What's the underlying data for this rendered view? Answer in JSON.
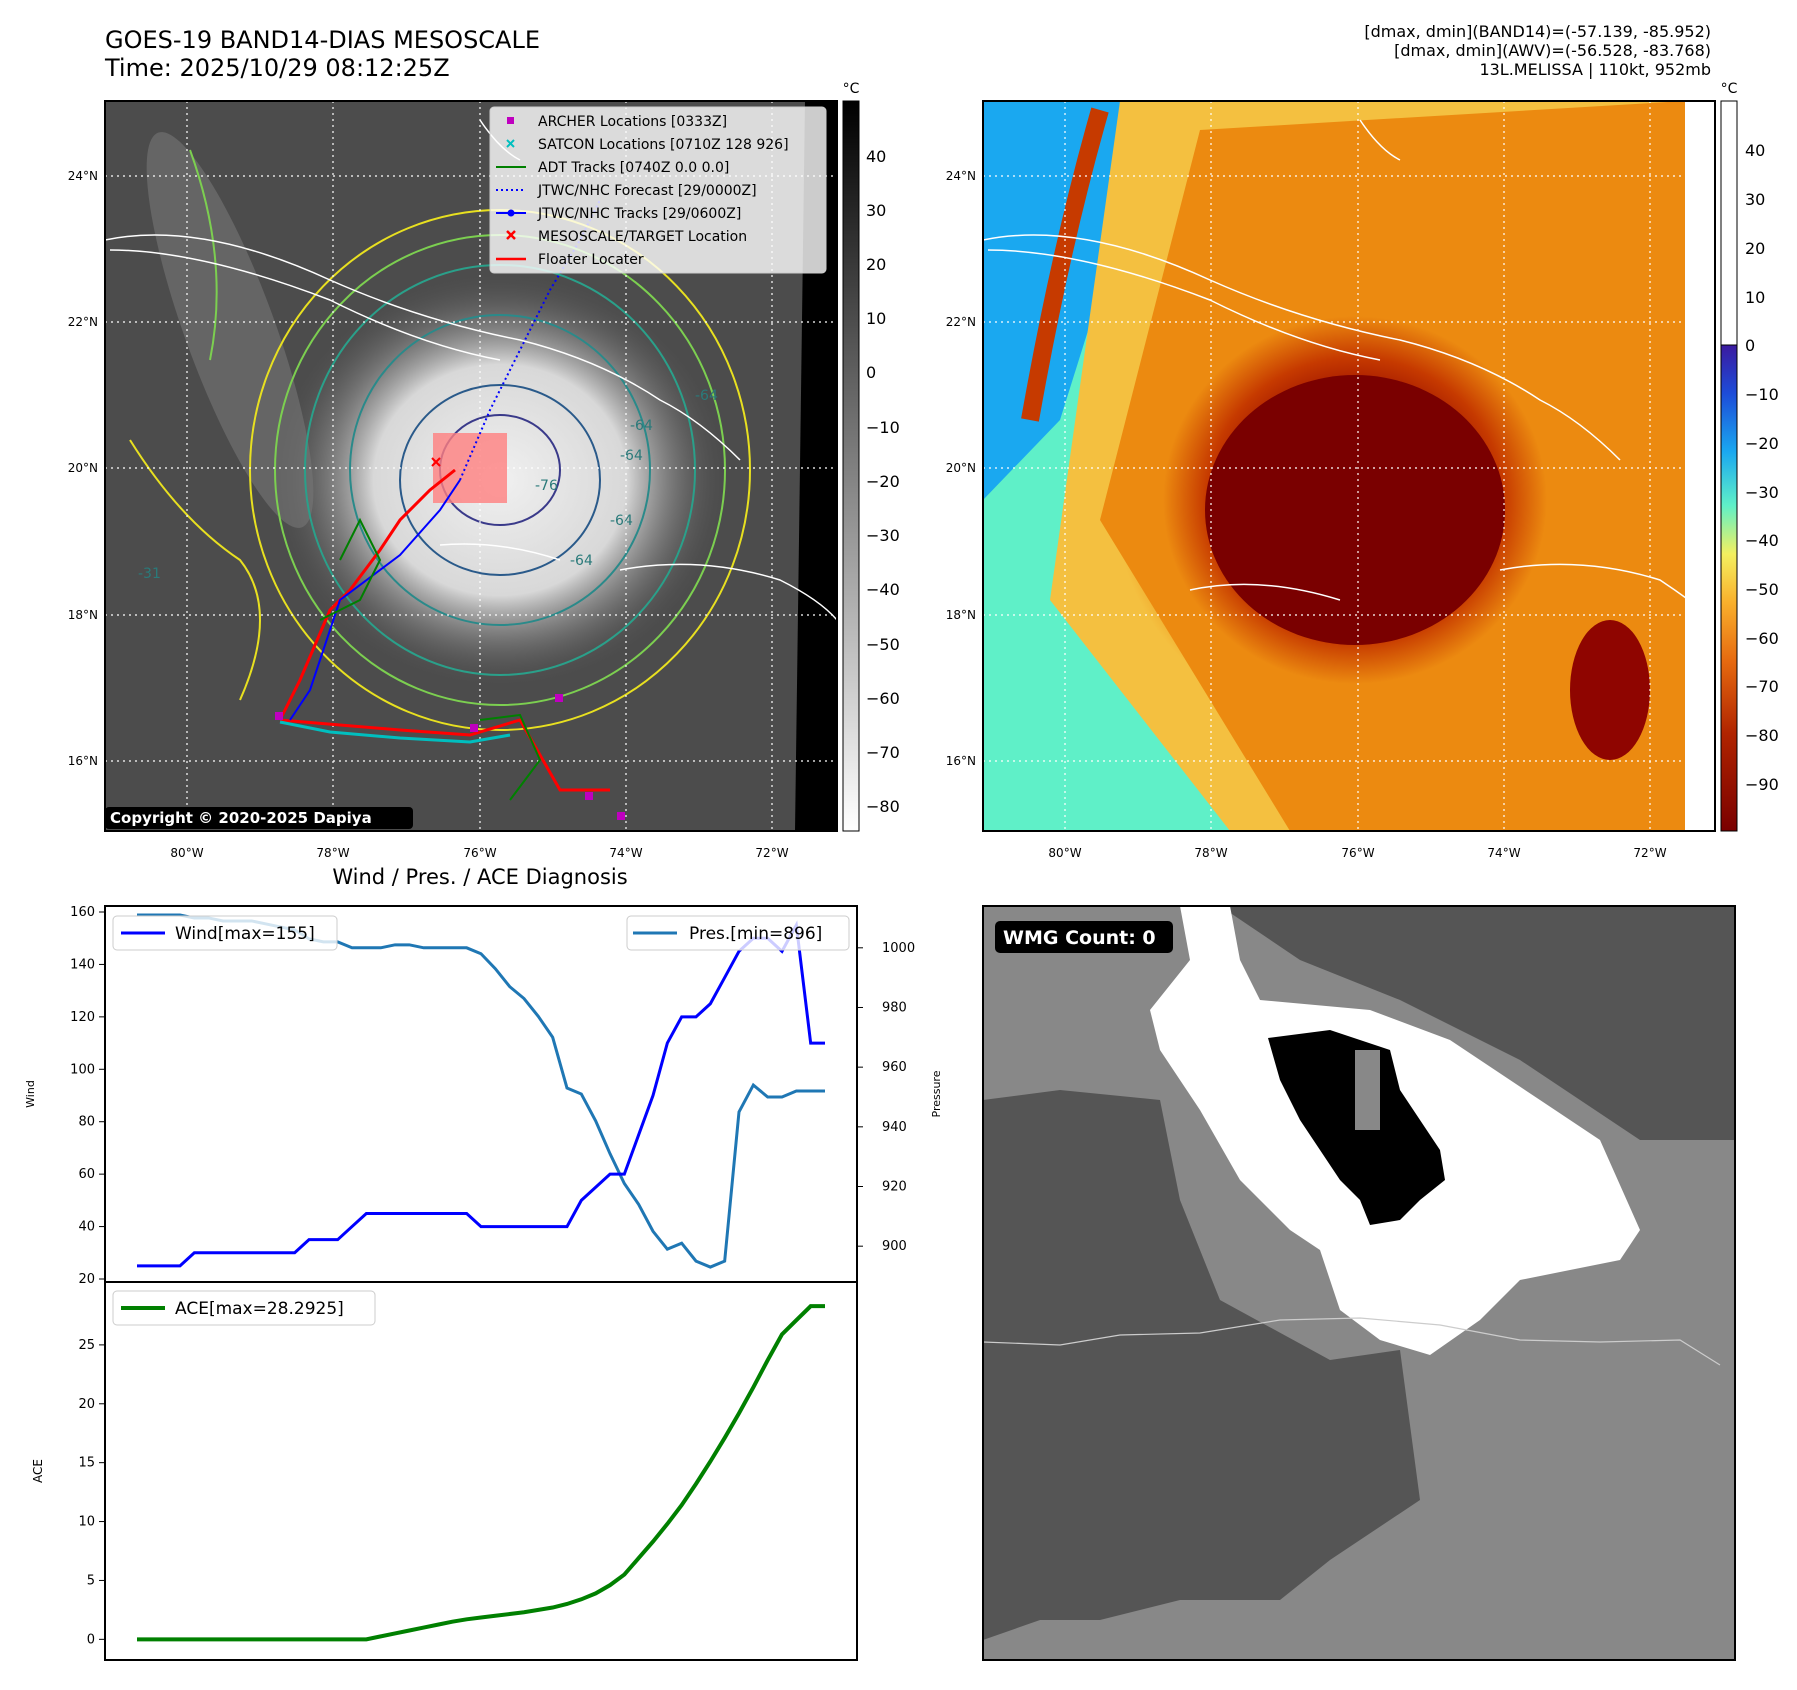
{
  "header": {
    "title_line1": "GOES-19 BAND14-DIAS MESOSCALE",
    "title_line2": "Time: 2025/10/29 08:12:25Z",
    "stats_line1": "[dmax, dmin](BAND14)=(-57.139, -85.952)",
    "stats_line2": "[dmax, dmin](AWV)=(-56.528, -83.768)",
    "stats_line3": "13L.MELISSA | 110kt, 952mb"
  },
  "ir_map": {
    "lon_ticks": [
      "80°W",
      "78°W",
      "76°W",
      "74°W",
      "72°W"
    ],
    "lat_ticks": [
      "24°N",
      "22°N",
      "20°N",
      "18°N",
      "16°N"
    ],
    "colorbar_unit": "°C",
    "colorbar_ticks": [
      "40",
      "30",
      "20",
      "10",
      "0",
      "−10",
      "−20",
      "−30",
      "−40",
      "−50",
      "−60",
      "−70",
      "−80"
    ],
    "contour_labels": [
      "-64",
      "-64",
      "-64",
      "-31",
      "-64",
      "-76",
      "-64"
    ],
    "copyright": "Copyright © 2020-2025 Dapiya",
    "legend": [
      {
        "label": "ARCHER Locations [0333Z]",
        "marker": "square",
        "color": "#bf00bf"
      },
      {
        "label": "SATCON Locations [0710Z 128 926]",
        "marker": "x",
        "color": "#00bfbf"
      },
      {
        "label": "ADT Tracks [0740Z 0.0 0.0]",
        "marker": "line",
        "color": "#008000"
      },
      {
        "label": "JTWC/NHC Forecast [29/0000Z]",
        "marker": "dotted",
        "color": "#0000ff"
      },
      {
        "label": "JTWC/NHC Tracks [29/0600Z]",
        "marker": "line-dot",
        "color": "#0000ff"
      },
      {
        "label": "MESOSCALE/TARGET Location",
        "marker": "x",
        "color": "#ff0000"
      },
      {
        "label": "Floater Locater",
        "marker": "line",
        "color": "#ff0000"
      }
    ]
  },
  "awv_map": {
    "lon_ticks": [
      "80°W",
      "78°W",
      "76°W",
      "74°W",
      "72°W"
    ],
    "lat_ticks": [
      "24°N",
      "22°N",
      "20°N",
      "18°N",
      "16°N"
    ],
    "colorbar_unit": "°C",
    "colorbar_ticks": [
      "40",
      "30",
      "20",
      "10",
      "0",
      "−10",
      "−20",
      "−30",
      "−40",
      "−50",
      "−60",
      "−70",
      "−80",
      "−90"
    ]
  },
  "wmg_panel": {
    "badge": "WMG Count: 0"
  },
  "chart_data": [
    {
      "type": "line",
      "title": "Wind / Pres. / ACE Diagnosis",
      "ylabel": "Wind",
      "ylabel_right": "Pressure",
      "ylim": [
        20,
        160
      ],
      "ylim_right": [
        889,
        1012
      ],
      "yticks": [
        20,
        40,
        60,
        80,
        100,
        120,
        140,
        160
      ],
      "yticks_right": [
        900,
        920,
        940,
        960,
        980,
        1000
      ],
      "x": [
        0,
        1,
        2,
        3,
        4,
        5,
        6,
        7,
        8,
        9,
        10,
        11,
        12,
        13,
        14,
        15,
        16,
        17,
        18,
        19,
        20,
        21,
        22,
        23,
        24,
        25,
        26,
        27,
        28,
        29,
        30,
        31,
        32,
        33,
        34,
        35,
        36,
        37,
        38,
        39,
        40,
        41,
        42,
        43,
        44,
        45,
        46,
        47,
        48
      ],
      "series": [
        {
          "name": "Wind[max=155]",
          "color": "#0000ff",
          "axis": "left",
          "values": [
            25,
            25,
            25,
            25,
            30,
            30,
            30,
            30,
            30,
            30,
            30,
            30,
            35,
            35,
            35,
            40,
            45,
            45,
            45,
            45,
            45,
            45,
            45,
            45,
            40,
            40,
            40,
            40,
            40,
            40,
            40,
            50,
            55,
            60,
            60,
            75,
            90,
            110,
            120,
            120,
            125,
            135,
            145,
            150,
            150,
            145,
            155,
            110,
            110
          ]
        },
        {
          "name": "Pres.[min=896]",
          "color": "#1f77b4",
          "axis": "right",
          "values": [
            1011,
            1011,
            1011,
            1011,
            1010,
            1010,
            1009,
            1009,
            1009,
            1008,
            1007,
            1006,
            1003,
            1002,
            1002,
            1000,
            1000,
            1000,
            1001,
            1001,
            1000,
            1000,
            1000,
            1000,
            998,
            993,
            987,
            983,
            977,
            970,
            953,
            951,
            942,
            931,
            921,
            914,
            905,
            899,
            901,
            895,
            893,
            895,
            945,
            954,
            950,
            950,
            952,
            952,
            952
          ]
        }
      ],
      "legend": [
        {
          "label": "Wind[max=155]",
          "placement": "upper left"
        },
        {
          "label": "Pres.[min=896]",
          "placement": "upper right"
        }
      ]
    },
    {
      "type": "line",
      "ylabel": "ACE",
      "ylim": [
        -1.5,
        30
      ],
      "yticks": [
        0,
        5,
        10,
        15,
        20,
        25
      ],
      "series": [
        {
          "name": "ACE[max=28.2925]",
          "color": "#008000",
          "values": [
            0,
            0,
            0,
            0,
            0,
            0,
            0,
            0,
            0,
            0,
            0,
            0,
            0,
            0,
            0,
            0,
            0,
            0.25,
            0.5,
            0.75,
            1.0,
            1.25,
            1.5,
            1.7,
            1.85,
            2.0,
            2.15,
            2.3,
            2.5,
            2.7,
            3.0,
            3.4,
            3.9,
            4.6,
            5.5,
            6.9,
            8.3,
            9.8,
            11.4,
            13.2,
            15.1,
            17.1,
            19.2,
            21.4,
            23.7,
            25.9,
            27.1,
            28.29,
            28.29
          ]
        }
      ],
      "legend": [
        {
          "label": "ACE[max=28.2925]",
          "placement": "upper left"
        }
      ]
    }
  ]
}
